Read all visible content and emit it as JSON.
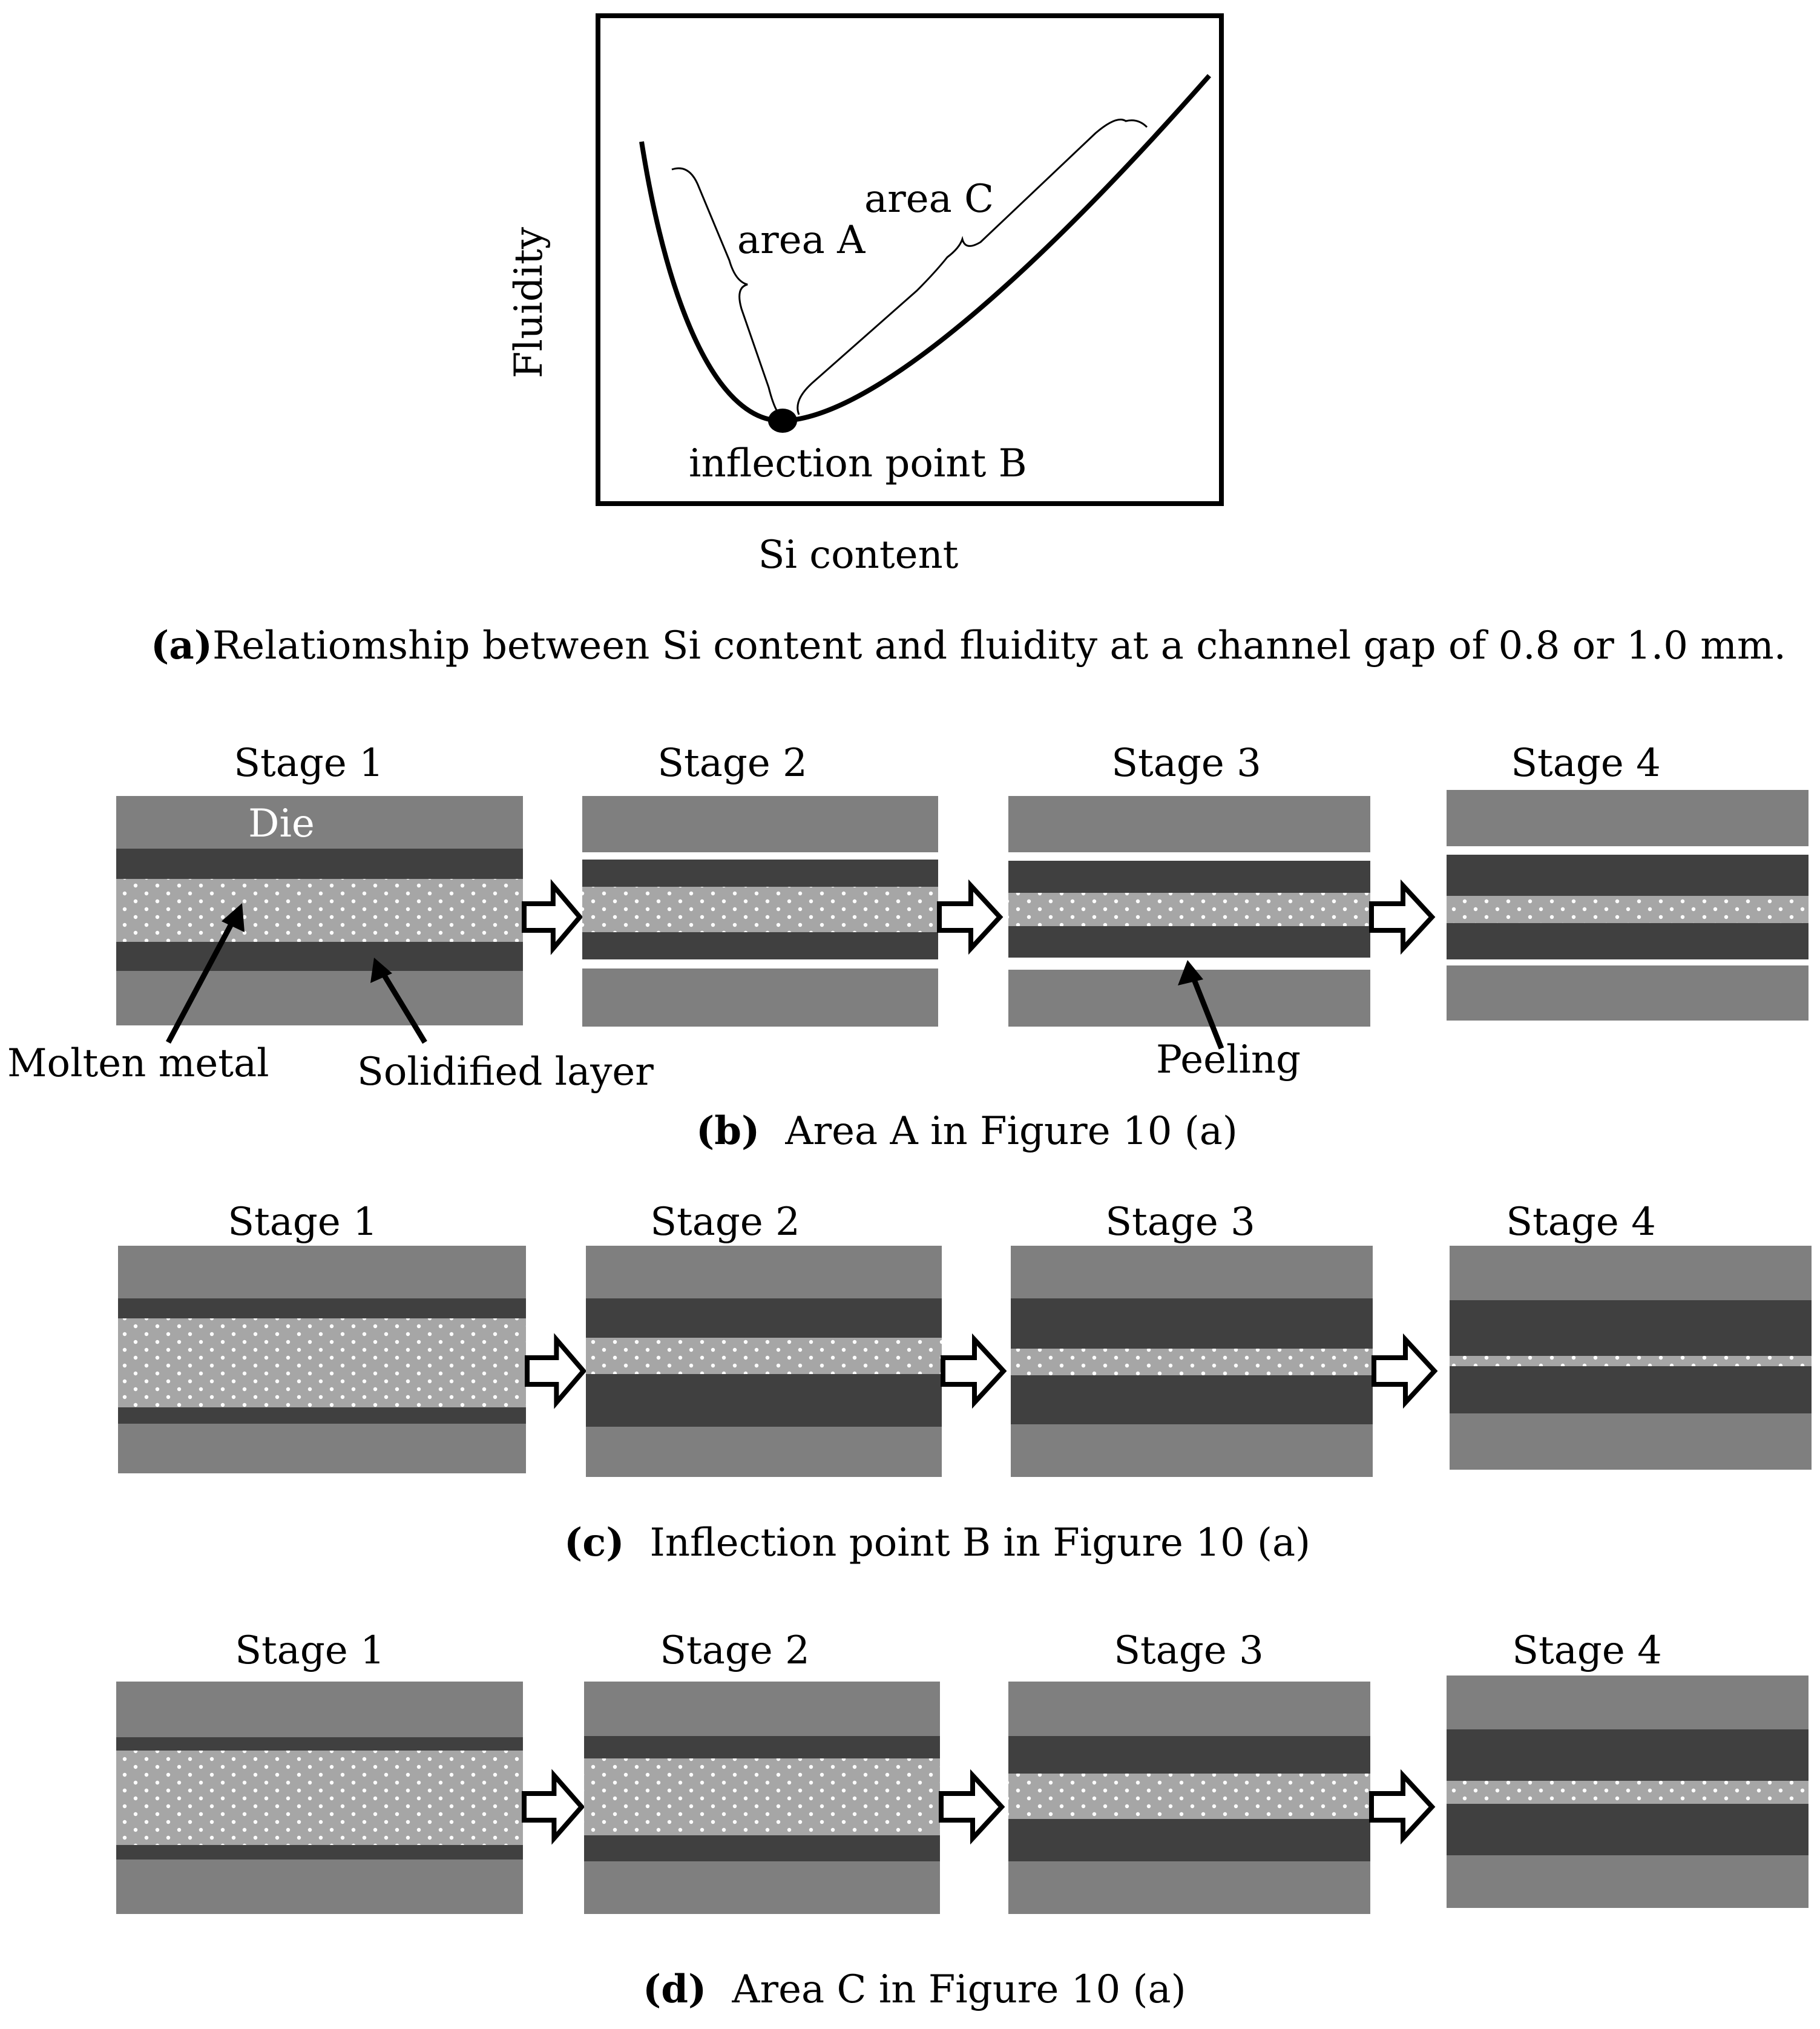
{
  "panel_a": {
    "y_axis_label": "Fluidity",
    "x_axis_label": "Si content",
    "area_a_label": "area A",
    "area_c_label": "area C",
    "point_b_label": "inflection point B",
    "caption_tag": "(a)",
    "caption_text": "Relatiomship between Si content and fluidity at a channel gap of 0.8 or 1.0 mm."
  },
  "stage_titles": [
    "Stage 1",
    "Stage 2",
    "Stage 3",
    "Stage 4"
  ],
  "panel_b": {
    "die_label": "Die",
    "molten_label": "Molten metal",
    "solidified_label": "Solidified layer",
    "peeling_label": "Peeling",
    "caption_tag": "(b)",
    "caption_text": "Area A in Figure 10 (a)"
  },
  "panel_c": {
    "caption_tag": "(c)",
    "caption_text": "Inflection point B in Figure 10 (a)"
  },
  "panel_d": {
    "caption_tag": "(d)",
    "caption_text": "Area C in Figure 10 (a)"
  },
  "colors": {
    "die": "#7f7f7f",
    "solidified_layer": "#404040",
    "molten_metal": "#a6a6a6",
    "molten_dots": "#ffffff",
    "gap": "#ffffff"
  }
}
